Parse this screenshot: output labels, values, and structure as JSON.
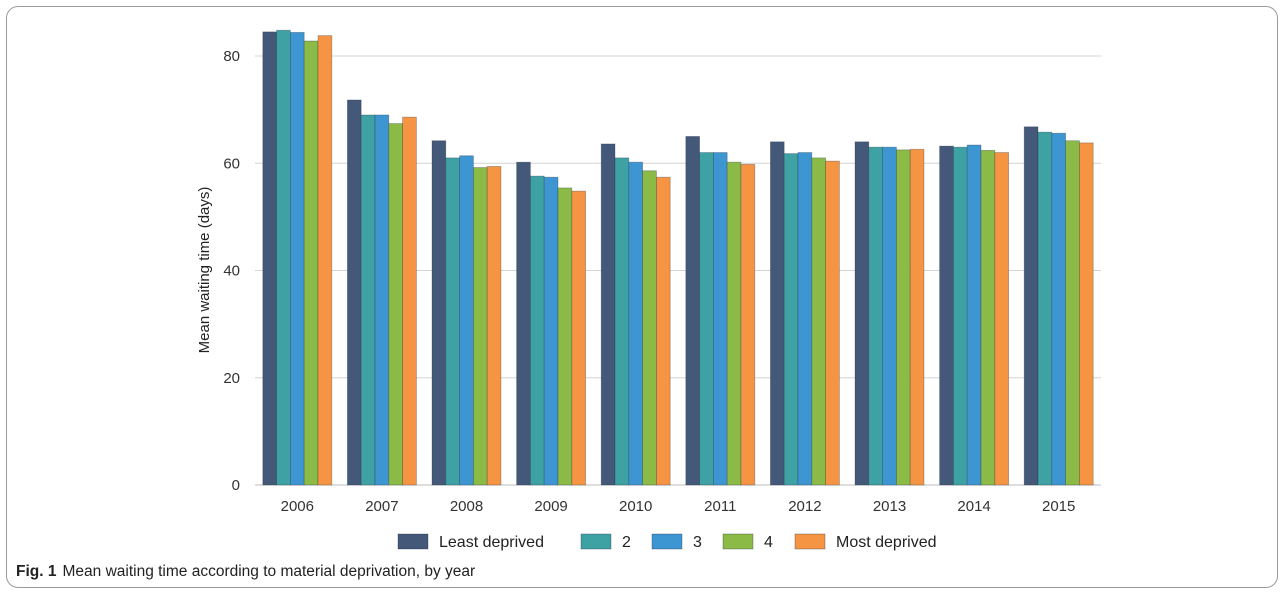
{
  "caption": {
    "label": "Fig. 1",
    "text": "Mean waiting time according to material deprivation, by year"
  },
  "chart_data": {
    "type": "bar",
    "title": "",
    "xlabel": "",
    "ylabel": "Mean waiting time (days)",
    "ylim": [
      0,
      85
    ],
    "yticks": [
      0,
      20,
      40,
      60,
      80
    ],
    "grid": true,
    "legend_position": "bottom",
    "categories": [
      "2006",
      "2007",
      "2008",
      "2009",
      "2010",
      "2011",
      "2012",
      "2013",
      "2014",
      "2015"
    ],
    "series": [
      {
        "name": "Least deprived",
        "color": "#44587a",
        "values": [
          84.5,
          71.8,
          64.2,
          60.2,
          63.6,
          65.0,
          64.0,
          64.0,
          63.2,
          66.8
        ]
      },
      {
        "name": "2",
        "color": "#3ea1a3",
        "values": [
          84.8,
          69.0,
          61.0,
          57.6,
          61.0,
          62.0,
          61.8,
          63.0,
          63.0,
          65.8
        ]
      },
      {
        "name": "3",
        "color": "#3d96d2",
        "values": [
          84.4,
          69.0,
          61.4,
          57.4,
          60.2,
          62.0,
          62.0,
          63.0,
          63.4,
          65.6
        ]
      },
      {
        "name": "4",
        "color": "#8bba47",
        "values": [
          82.8,
          67.4,
          59.2,
          55.4,
          58.6,
          60.2,
          61.0,
          62.5,
          62.4,
          64.2
        ]
      },
      {
        "name": "Most deprived",
        "color": "#f59442",
        "values": [
          83.8,
          68.6,
          59.4,
          54.8,
          57.4,
          59.8,
          60.4,
          62.6,
          62.0,
          63.8
        ]
      }
    ]
  }
}
